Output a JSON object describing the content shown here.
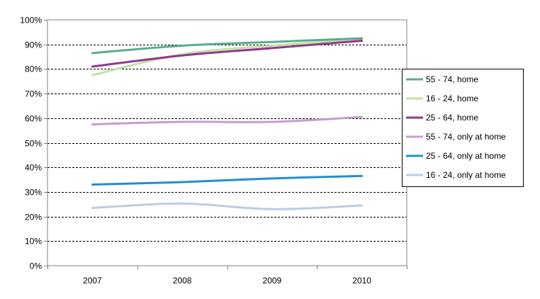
{
  "chart_data": {
    "type": "line",
    "categories": [
      "2007",
      "2008",
      "2009",
      "2010"
    ],
    "ylim": [
      0,
      100
    ],
    "yticks": [
      "0%",
      "10%",
      "20%",
      "30%",
      "40%",
      "50%",
      "60%",
      "70%",
      "80%",
      "90%",
      "100%"
    ],
    "grid": "horizontal dashed",
    "legend_position": "right",
    "series": [
      {
        "name": "55 - 74, home",
        "color": "#5aab8f",
        "values": [
          86.5,
          89.5,
          91,
          92.5
        ]
      },
      {
        "name": "16 - 24, home",
        "color": "#c5e0a5",
        "values": [
          77.5,
          86,
          89.5,
          92
        ]
      },
      {
        "name": "25 - 64, home",
        "color": "#8e3a8f",
        "values": [
          81,
          85.5,
          88.5,
          91.5
        ]
      },
      {
        "name": "55 - 74, only at home",
        "color": "#c79ccf",
        "values": [
          57.5,
          58.5,
          58.5,
          60.5
        ]
      },
      {
        "name": "25 - 64, only at home",
        "color": "#1f90d0",
        "values": [
          33,
          34,
          35.5,
          36.5
        ]
      },
      {
        "name": "16 - 24, only at home",
        "color": "#b9cde6",
        "values": [
          23.5,
          25.3,
          23,
          24.5
        ]
      }
    ]
  }
}
